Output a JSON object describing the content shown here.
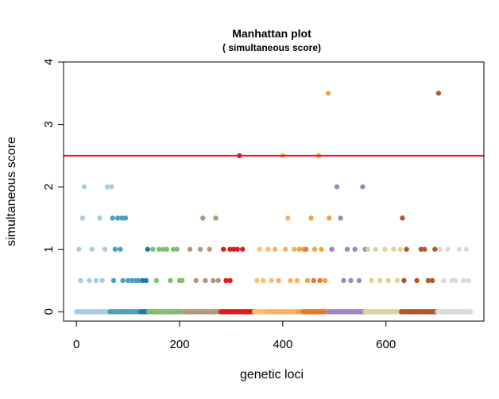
{
  "chart_data": {
    "type": "scatter",
    "title": "Manhattan plot",
    "subtitle": "( simultaneous score)",
    "xlabel": "genetic loci",
    "ylabel": "simultaneous score",
    "xlim": [
      -25,
      790
    ],
    "ylim": [
      -0.15,
      4
    ],
    "x_ticks": [
      0,
      200,
      400,
      600
    ],
    "y_ticks": [
      0,
      1,
      2,
      3,
      4
    ],
    "threshold": {
      "y": 2.5,
      "color": "#e41a1c"
    },
    "grid": false,
    "legend": "none",
    "groups": [
      {
        "color": "#a6cee3",
        "x_range": [
          0,
          65
        ],
        "points": [
          [
            5,
            1
          ],
          [
            8,
            0.5
          ],
          [
            12,
            1.5
          ],
          [
            15,
            2
          ],
          [
            30,
            1
          ],
          [
            38,
            0.5
          ],
          [
            45,
            1.5
          ],
          [
            55,
            1
          ],
          [
            60,
            2
          ],
          [
            68,
            2
          ],
          [
            50,
            0.5
          ],
          [
            25,
            0.5
          ]
        ],
        "zero": [
          0,
          65
        ]
      },
      {
        "color": "#4b9fbf",
        "x_range": [
          65,
          125
        ],
        "points": [
          [
            70,
            1.5
          ],
          [
            75,
            1
          ],
          [
            80,
            1.5
          ],
          [
            85,
            1
          ],
          [
            88,
            1.5
          ],
          [
            95,
            1.5
          ],
          [
            100,
            0.5
          ],
          [
            108,
            0.5
          ],
          [
            115,
            0.5
          ],
          [
            120,
            0.5
          ],
          [
            72,
            0.5
          ],
          [
            90,
            0.5
          ]
        ],
        "zero": [
          65,
          125
        ]
      },
      {
        "color": "#1f78b4",
        "x_range": [
          125,
          140
        ],
        "points": [
          [
            128,
            0.5
          ],
          [
            135,
            0.5
          ],
          [
            138,
            1
          ]
        ],
        "zero": [
          125,
          140
        ]
      },
      {
        "color": "#7fbf6f",
        "x_range": [
          140,
          210
        ],
        "points": [
          [
            148,
            1
          ],
          [
            155,
            0.5
          ],
          [
            160,
            1
          ],
          [
            168,
            1
          ],
          [
            175,
            1
          ],
          [
            182,
            0.5
          ],
          [
            188,
            1
          ],
          [
            195,
            1
          ],
          [
            200,
            0.5
          ],
          [
            205,
            0.5
          ]
        ],
        "zero": [
          140,
          210
        ]
      },
      {
        "color": "#b2987a",
        "x_range": [
          210,
          275
        ],
        "points": [
          [
            220,
            1
          ],
          [
            232,
            0.5
          ],
          [
            240,
            1
          ],
          [
            245,
            1.5
          ],
          [
            250,
            0.5
          ],
          [
            258,
            1
          ],
          [
            265,
            0.5
          ],
          [
            270,
            1.5
          ],
          [
            275,
            0.5
          ]
        ],
        "zero": [
          210,
          280
        ]
      },
      {
        "color": "#e31a1c",
        "x_range": [
          280,
          345
        ],
        "points": [
          [
            285,
            1
          ],
          [
            290,
            0.5
          ],
          [
            298,
            1
          ],
          [
            305,
            1
          ],
          [
            312,
            1
          ],
          [
            316,
            2.5
          ],
          [
            322,
            1
          ],
          [
            298,
            0.5
          ]
        ],
        "zero": [
          280,
          345
        ]
      },
      {
        "color": "#fdbf6f",
        "x_range": [
          345,
          380
        ],
        "points": [
          [
            350,
            0.5
          ],
          [
            355,
            1
          ],
          [
            362,
            0.5
          ],
          [
            372,
            1
          ],
          [
            378,
            0.5
          ]
        ],
        "zero": [
          345,
          370
        ]
      },
      {
        "color": "#fdae61",
        "x_range": [
          380,
          430
        ],
        "points": [
          [
            385,
            1
          ],
          [
            392,
            0.5
          ],
          [
            400,
            2.5
          ],
          [
            405,
            1
          ],
          [
            410,
            1.5
          ],
          [
            415,
            0.5
          ],
          [
            422,
            1
          ],
          [
            428,
            0.5
          ]
        ],
        "zero": [
          370,
          430
        ]
      },
      {
        "color": "#f4a14a",
        "x_range": [
          430,
          490
        ],
        "points": [
          [
            432,
            1
          ],
          [
            440,
            1
          ],
          [
            448,
            0.5
          ],
          [
            455,
            1.5
          ],
          [
            462,
            1
          ],
          [
            470,
            2.5
          ],
          [
            475,
            1
          ],
          [
            482,
            0.5
          ],
          [
            488,
            3.5
          ],
          [
            490,
            1.5
          ]
        ],
        "zero": [
          430,
          490
        ]
      },
      {
        "color": "#e6772b",
        "x_range": [
          440,
          480
        ],
        "points": [
          [
            445,
            1
          ],
          [
            460,
            0.5
          ],
          [
            472,
            0.5
          ]
        ],
        "zero": [
          440,
          480
        ]
      },
      {
        "color": "#9e86c4",
        "x_range": [
          490,
          560
        ],
        "points": [
          [
            495,
            1
          ],
          [
            505,
            2
          ],
          [
            512,
            1.5
          ],
          [
            518,
            0.5
          ],
          [
            525,
            1
          ],
          [
            532,
            0.5
          ],
          [
            540,
            1
          ],
          [
            548,
            0.5
          ],
          [
            555,
            2
          ],
          [
            560,
            1
          ]
        ],
        "zero": [
          490,
          560
        ]
      },
      {
        "color": "#dcd49a",
        "x_range": [
          560,
          630
        ],
        "points": [
          [
            565,
            1
          ],
          [
            572,
            0.5
          ],
          [
            580,
            1
          ],
          [
            588,
            0.5
          ],
          [
            598,
            1
          ],
          [
            605,
            0.5
          ],
          [
            615,
            1
          ],
          [
            622,
            0.5
          ],
          [
            628,
            1
          ]
        ],
        "zero": [
          560,
          630
        ]
      },
      {
        "color": "#b15928",
        "x_range": [
          630,
          700
        ],
        "points": [
          [
            632,
            1.5
          ],
          [
            635,
            0.5
          ],
          [
            640,
            1
          ],
          [
            660,
            0.5
          ],
          [
            668,
            1
          ],
          [
            675,
            1
          ],
          [
            682,
            0.5
          ],
          [
            690,
            0.5
          ],
          [
            695,
            1
          ],
          [
            702,
            3.5
          ]
        ],
        "zero": [
          630,
          700
        ]
      },
      {
        "color": "#d9d9d9",
        "x_range": [
          700,
          765
        ],
        "points": [
          [
            705,
            1
          ],
          [
            712,
            0.5
          ],
          [
            720,
            1
          ],
          [
            728,
            0.5
          ],
          [
            735,
            0.5
          ],
          [
            742,
            1
          ],
          [
            750,
            0.5
          ],
          [
            756,
            1
          ],
          [
            760,
            0.5
          ]
        ],
        "zero": [
          700,
          765
        ]
      }
    ]
  }
}
